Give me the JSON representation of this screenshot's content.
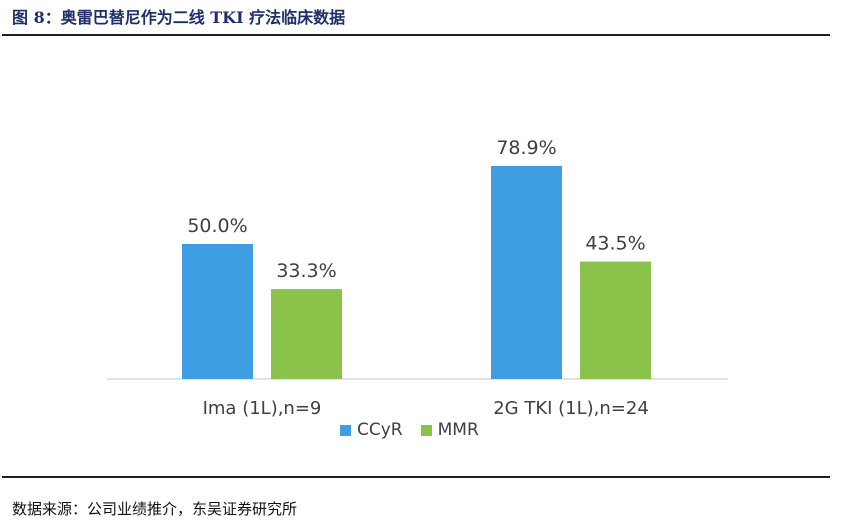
{
  "figure": {
    "title": "图 8：奥雷巴替尼作为二线 TKI 疗法临床数据",
    "source": "数据来源：公司业绩推介，东吴证券研究所"
  },
  "colors": {
    "CCyR": "#3f9de2",
    "MMR": "#8bc34a",
    "axis": "#d9d9d9",
    "label": "#404040"
  },
  "chart_data": {
    "type": "bar",
    "title": "",
    "xlabel": "",
    "ylabel": "",
    "categories": [
      "Ima (1L),n=9",
      "2G TKI (1L),n=24"
    ],
    "series": [
      {
        "name": "CCyR",
        "values": [
          50.0,
          78.9
        ],
        "labels": [
          "50.0%",
          "78.9%"
        ]
      },
      {
        "name": "MMR",
        "values": [
          33.3,
          43.5
        ],
        "labels": [
          "33.3%",
          "43.5%"
        ]
      }
    ],
    "ylim": [
      0,
      100
    ],
    "grid": false,
    "legend": "bottom"
  }
}
